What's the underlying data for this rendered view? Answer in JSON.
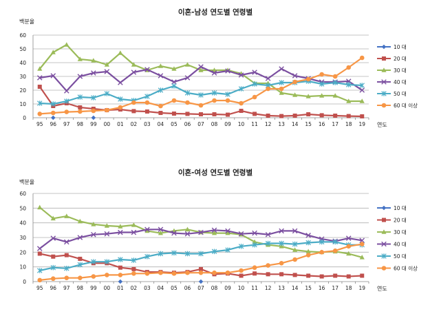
{
  "chart_data": [
    {
      "type": "line",
      "title": "이혼-남성 연도별 연령별",
      "ylabel": "백분율",
      "xlabel": "연도",
      "ylim": [
        0,
        60
      ],
      "yticks": [
        0,
        10,
        20,
        30,
        40,
        50,
        60
      ],
      "grid": true,
      "legend_position": "right",
      "categories": [
        "95",
        "96",
        "97",
        "98",
        "99",
        "00",
        "01",
        "02",
        "03",
        "04",
        "05",
        "06",
        "07",
        "08",
        "09",
        "10",
        "11",
        "12",
        "13",
        "14",
        "15",
        "16",
        "17",
        "18",
        "19"
      ],
      "series": [
        {
          "name": "10 대",
          "color": "#4472c4",
          "marker": "diamond",
          "values": [
            null,
            0,
            null,
            null,
            0,
            null,
            null,
            null,
            null,
            null,
            null,
            null,
            null,
            null,
            null,
            null,
            null,
            null,
            null,
            null,
            null,
            null,
            null,
            null,
            null
          ]
        },
        {
          "name": "20 대",
          "color": "#c0504d",
          "marker": "square",
          "values": [
            22.5,
            8.5,
            10.5,
            7.5,
            6.5,
            5.5,
            6,
            4.8,
            4.5,
            3.5,
            3,
            2.8,
            2.5,
            2.5,
            2.2,
            5,
            2.8,
            1.5,
            1.2,
            1.5,
            2.5,
            1.8,
            1.5,
            1.2,
            1
          ]
        },
        {
          "name": "30 대",
          "color": "#9bbb59",
          "marker": "triangle",
          "values": [
            35.5,
            47.5,
            53,
            42.5,
            41.5,
            38.5,
            47,
            38.5,
            34.5,
            37.5,
            35.5,
            38.5,
            34.5,
            34.5,
            34.5,
            32,
            25,
            25,
            18,
            16.5,
            15.5,
            16,
            16,
            12,
            12
          ]
        },
        {
          "name": "40 대",
          "color": "#7b4fa0",
          "marker": "x",
          "values": [
            29,
            30.5,
            19.5,
            30,
            32.5,
            33.5,
            25.5,
            33,
            35,
            30.5,
            26,
            29,
            37,
            32.5,
            34,
            31,
            33,
            28.5,
            35.5,
            30.5,
            28.5,
            26,
            26,
            26.5,
            20
          ]
        },
        {
          "name": "50 대",
          "color": "#4bacc6",
          "marker": "star",
          "values": [
            10.5,
            10,
            12,
            15,
            14.5,
            17.5,
            13.5,
            12.5,
            15.5,
            20,
            23,
            18,
            16.5,
            18,
            17,
            21,
            24.5,
            23.5,
            25.5,
            25.5,
            26.5,
            24.5,
            25.5,
            24,
            23.5
          ]
        },
        {
          "name": "60 대 이상",
          "color": "#f79646",
          "marker": "circle",
          "values": [
            2.8,
            3.5,
            4.2,
            4.5,
            5,
            5.5,
            7.5,
            11,
            11,
            8.5,
            12.5,
            11,
            9,
            12.5,
            12.5,
            10.5,
            15,
            21,
            21,
            26,
            28,
            31.5,
            30,
            36.5,
            43.5
          ]
        }
      ]
    },
    {
      "type": "line",
      "title": "이혼-여성 연도별 연령별",
      "ylabel": "백분율",
      "xlabel": "연도",
      "ylim": [
        0,
        60
      ],
      "yticks": [
        0,
        10,
        20,
        30,
        40,
        50,
        60
      ],
      "grid": true,
      "legend_position": "right",
      "categories": [
        "95",
        "96",
        "97",
        "98",
        "99",
        "00",
        "01",
        "02",
        "03",
        "04",
        "05",
        "06",
        "07",
        "08",
        "09",
        "10",
        "11",
        "12",
        "13",
        "14",
        "15",
        "16",
        "17",
        "18",
        "19"
      ],
      "series": [
        {
          "name": "10 대",
          "color": "#4472c4",
          "marker": "diamond",
          "values": [
            null,
            null,
            null,
            null,
            null,
            null,
            0,
            null,
            null,
            null,
            null,
            null,
            0,
            null,
            null,
            null,
            null,
            null,
            null,
            null,
            null,
            null,
            null,
            null,
            null
          ]
        },
        {
          "name": "20 대",
          "color": "#c0504d",
          "marker": "square",
          "values": [
            19,
            17,
            18,
            15.5,
            12.5,
            12.5,
            9.5,
            8.5,
            6.5,
            6.5,
            6,
            6.5,
            8.5,
            5,
            5.5,
            4,
            5.5,
            5,
            5,
            4.5,
            4,
            3.5,
            4,
            3.5,
            4
          ]
        },
        {
          "name": "30 대",
          "color": "#9bbb59",
          "marker": "triangle",
          "values": [
            50.5,
            43,
            44.5,
            41,
            39,
            38,
            37.5,
            38.5,
            34.5,
            33,
            34.5,
            35.5,
            33.5,
            33,
            33,
            32,
            27,
            25,
            24,
            21.5,
            20.5,
            20,
            20.5,
            19,
            16.5
          ]
        },
        {
          "name": "40 대",
          "color": "#7b4fa0",
          "marker": "x",
          "values": [
            22.5,
            29.5,
            27,
            30,
            32,
            32.5,
            33.5,
            33.5,
            35.5,
            35.5,
            33,
            32.5,
            33.5,
            35,
            34.5,
            32.5,
            33,
            32,
            34.5,
            34.5,
            31.5,
            29,
            27.5,
            29.5,
            28
          ]
        },
        {
          "name": "50 대",
          "color": "#4bacc6",
          "marker": "star",
          "values": [
            7.5,
            9.5,
            9,
            11.5,
            13.5,
            13.5,
            15,
            14.5,
            17,
            19,
            19.5,
            19,
            19,
            20.5,
            21.5,
            24,
            25,
            26,
            26,
            25.5,
            26.5,
            27,
            27,
            25,
            25
          ]
        },
        {
          "name": "60 대 이상",
          "color": "#f79646",
          "marker": "circle",
          "values": [
            1,
            2,
            2.5,
            2.5,
            3.5,
            4.5,
            4.5,
            5.5,
            5.5,
            6,
            5.5,
            6,
            6,
            6,
            6,
            7.5,
            9.5,
            11,
            12.5,
            15,
            18,
            20,
            21,
            24,
            25.5
          ]
        }
      ]
    }
  ]
}
